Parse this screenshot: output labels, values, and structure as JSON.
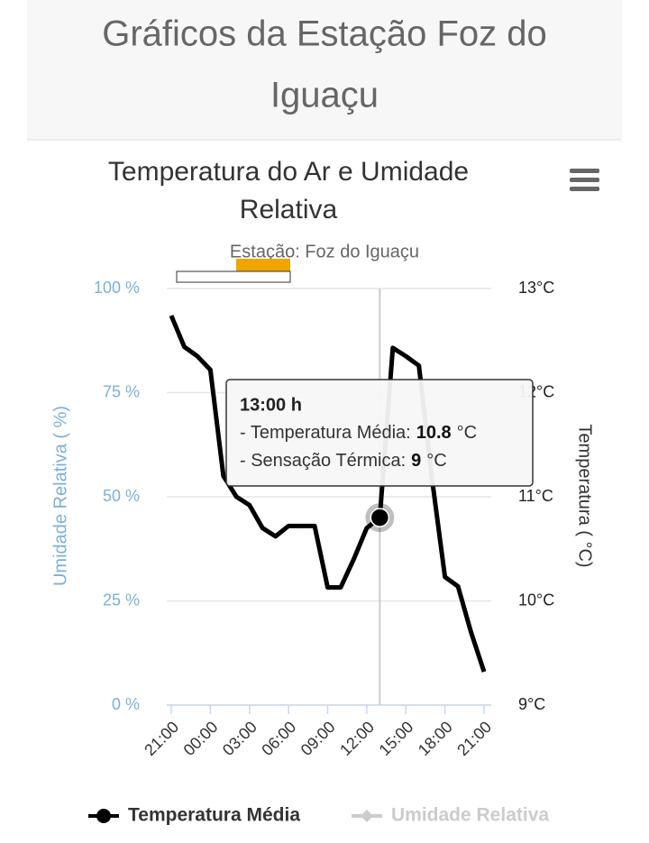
{
  "page_title": "Gráficos da Estação Foz do Iguaçu",
  "chart_data": {
    "type": "line",
    "title": "Temperatura do Ar e Umidade Relativa",
    "subtitle": "Estação: Foz do Iguaçu",
    "y_label": "Umidade Relativa ( %)",
    "y2_label": "Temperatura ( °C)",
    "x": [
      0,
      1,
      2,
      3,
      4,
      5,
      6,
      7,
      8,
      9,
      10,
      11,
      12,
      13,
      14,
      15,
      16,
      17,
      18,
      19,
      20,
      21,
      22,
      23,
      24
    ],
    "xlim": [
      0,
      24
    ],
    "xticks": [
      {
        "value": 0,
        "label": "21:00"
      },
      {
        "value": 3,
        "label": "00:00"
      },
      {
        "value": 6,
        "label": "03:00"
      },
      {
        "value": 9,
        "label": "06:00"
      },
      {
        "value": 12,
        "label": "09:00"
      },
      {
        "value": 15,
        "label": "12:00"
      },
      {
        "value": 18,
        "label": "15:00"
      },
      {
        "value": 21,
        "label": "18:00"
      },
      {
        "value": 24,
        "label": "21:00"
      }
    ],
    "ylim": [
      0,
      100
    ],
    "yticks": [
      {
        "value": 0,
        "label": "0 %"
      },
      {
        "value": 25,
        "label": "25 %"
      },
      {
        "value": 50,
        "label": "50 %"
      },
      {
        "value": 75,
        "label": "75 %"
      },
      {
        "value": 100,
        "label": "100 %"
      }
    ],
    "y2lim": [
      9,
      13
    ],
    "y2ticks": [
      {
        "value": 9,
        "label": "9°C"
      },
      {
        "value": 10,
        "label": "10°C"
      },
      {
        "value": 11,
        "label": "11°C"
      },
      {
        "value": 12,
        "label": "12°C"
      },
      {
        "value": 13,
        "label": "13°C"
      }
    ],
    "grid": true,
    "series": [
      {
        "name": "Temperatura Média",
        "color": "#000000",
        "axis": "y2",
        "values": [
          12.74,
          12.44,
          12.35,
          12.22,
          11.2,
          11.0,
          10.92,
          10.7,
          10.62,
          10.72,
          10.72,
          10.72,
          10.13,
          10.13,
          10.4,
          10.7,
          10.8,
          12.43,
          12.35,
          12.26,
          11.18,
          10.23,
          10.14,
          9.7,
          9.32
        ]
      },
      {
        "name": "Umidade Relativa",
        "color": "#cccccc",
        "visible": false
      }
    ],
    "tooltip": {
      "title": "13:00 h",
      "index": 16,
      "lines": [
        {
          "label": "- Temperatura Média:",
          "value": 10.8,
          "unit": "°C"
        },
        {
          "label": "- Sensação Térmica:",
          "value": 9,
          "unit": "°C"
        }
      ]
    }
  }
}
